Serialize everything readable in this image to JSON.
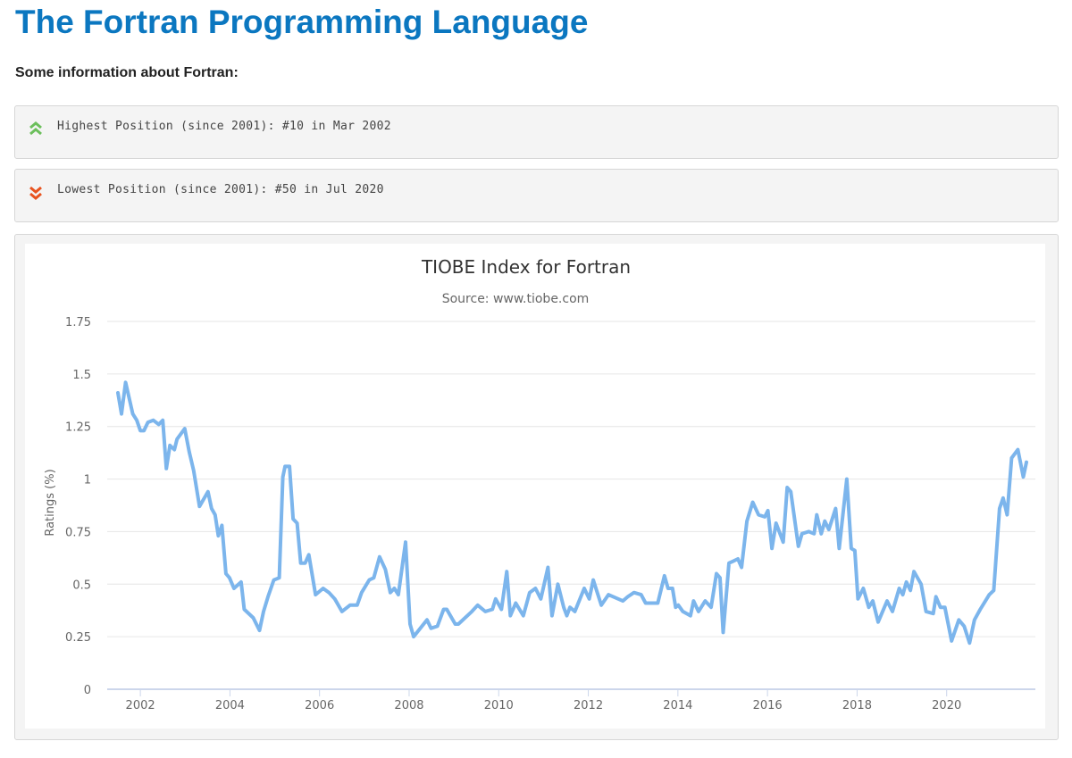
{
  "page": {
    "title": "The Fortran Programming Language",
    "intro": "Some information about Fortran:",
    "highest": {
      "icon": "double-chevron-up-icon",
      "color": "#6cbf5c",
      "text": "Highest Position (since 2001): #10 in Mar 2002"
    },
    "lowest": {
      "icon": "double-chevron-down-icon",
      "color": "#e8531f",
      "text": "Lowest Position (since 2001): #50 in Jul 2020"
    }
  },
  "chart_data": {
    "type": "line",
    "title": "TIOBE Index for Fortran",
    "subtitle": "Source: www.tiobe.com",
    "xlabel": "",
    "ylabel": "Ratings (%)",
    "ylim": [
      0,
      1.75
    ],
    "xlim": [
      2001.26,
      2021.98
    ],
    "yticks": [
      "0",
      "0.25",
      "0.5",
      "0.75",
      "1",
      "1.25",
      "1.5",
      "1.75"
    ],
    "xticks": [
      "2002",
      "2004",
      "2006",
      "2008",
      "2010",
      "2012",
      "2014",
      "2016",
      "2018",
      "2020"
    ],
    "grid": true,
    "legend": "none",
    "line_color": "#7cb5ec",
    "series": [
      {
        "points": [
          [
            2001.5,
            1.41
          ],
          [
            2001.58,
            1.31
          ],
          [
            2001.67,
            1.46
          ],
          [
            2001.83,
            1.31
          ],
          [
            2001.92,
            1.28
          ],
          [
            2002.0,
            1.23
          ],
          [
            2002.08,
            1.23
          ],
          [
            2002.17,
            1.27
          ],
          [
            2002.29,
            1.28
          ],
          [
            2002.41,
            1.26
          ],
          [
            2002.5,
            1.28
          ],
          [
            2002.58,
            1.05
          ],
          [
            2002.66,
            1.16
          ],
          [
            2002.76,
            1.14
          ],
          [
            2002.82,
            1.19
          ],
          [
            2002.99,
            1.24
          ],
          [
            2003.09,
            1.13
          ],
          [
            2003.19,
            1.04
          ],
          [
            2003.32,
            0.87
          ],
          [
            2003.51,
            0.94
          ],
          [
            2003.59,
            0.86
          ],
          [
            2003.67,
            0.83
          ],
          [
            2003.74,
            0.73
          ],
          [
            2003.82,
            0.78
          ],
          [
            2003.91,
            0.55
          ],
          [
            2003.99,
            0.53
          ],
          [
            2004.09,
            0.48
          ],
          [
            2004.25,
            0.51
          ],
          [
            2004.32,
            0.38
          ],
          [
            2004.52,
            0.34
          ],
          [
            2004.66,
            0.28
          ],
          [
            2004.75,
            0.37
          ],
          [
            2004.85,
            0.44
          ],
          [
            2004.98,
            0.52
          ],
          [
            2005.1,
            0.53
          ],
          [
            2005.18,
            1.01
          ],
          [
            2005.23,
            1.06
          ],
          [
            2005.33,
            1.06
          ],
          [
            2005.41,
            0.81
          ],
          [
            2005.5,
            0.79
          ],
          [
            2005.58,
            0.6
          ],
          [
            2005.68,
            0.6
          ],
          [
            2005.76,
            0.64
          ],
          [
            2005.91,
            0.45
          ],
          [
            2006.08,
            0.48
          ],
          [
            2006.21,
            0.46
          ],
          [
            2006.34,
            0.43
          ],
          [
            2006.5,
            0.37
          ],
          [
            2006.68,
            0.4
          ],
          [
            2006.84,
            0.4
          ],
          [
            2006.94,
            0.46
          ],
          [
            2007.11,
            0.52
          ],
          [
            2007.21,
            0.53
          ],
          [
            2007.34,
            0.63
          ],
          [
            2007.47,
            0.57
          ],
          [
            2007.58,
            0.46
          ],
          [
            2007.67,
            0.48
          ],
          [
            2007.76,
            0.45
          ],
          [
            2007.92,
            0.7
          ],
          [
            2008.02,
            0.31
          ],
          [
            2008.1,
            0.25
          ],
          [
            2008.4,
            0.33
          ],
          [
            2008.49,
            0.29
          ],
          [
            2008.63,
            0.3
          ],
          [
            2008.77,
            0.38
          ],
          [
            2008.84,
            0.38
          ],
          [
            2009.03,
            0.31
          ],
          [
            2009.1,
            0.31
          ],
          [
            2009.4,
            0.37
          ],
          [
            2009.53,
            0.4
          ],
          [
            2009.7,
            0.37
          ],
          [
            2009.86,
            0.38
          ],
          [
            2009.93,
            0.43
          ],
          [
            2010.06,
            0.38
          ],
          [
            2010.18,
            0.56
          ],
          [
            2010.26,
            0.35
          ],
          [
            2010.38,
            0.41
          ],
          [
            2010.55,
            0.35
          ],
          [
            2010.69,
            0.46
          ],
          [
            2010.82,
            0.48
          ],
          [
            2010.94,
            0.43
          ],
          [
            2011.1,
            0.58
          ],
          [
            2011.19,
            0.35
          ],
          [
            2011.32,
            0.5
          ],
          [
            2011.45,
            0.39
          ],
          [
            2011.52,
            0.35
          ],
          [
            2011.59,
            0.39
          ],
          [
            2011.7,
            0.37
          ],
          [
            2011.91,
            0.48
          ],
          [
            2012.02,
            0.43
          ],
          [
            2012.11,
            0.52
          ],
          [
            2012.29,
            0.4
          ],
          [
            2012.45,
            0.45
          ],
          [
            2012.77,
            0.42
          ],
          [
            2012.88,
            0.44
          ],
          [
            2013.02,
            0.46
          ],
          [
            2013.18,
            0.45
          ],
          [
            2013.28,
            0.41
          ],
          [
            2013.55,
            0.41
          ],
          [
            2013.7,
            0.54
          ],
          [
            2013.78,
            0.48
          ],
          [
            2013.88,
            0.48
          ],
          [
            2013.95,
            0.39
          ],
          [
            2014.01,
            0.4
          ],
          [
            2014.11,
            0.37
          ],
          [
            2014.28,
            0.35
          ],
          [
            2014.35,
            0.42
          ],
          [
            2014.46,
            0.37
          ],
          [
            2014.61,
            0.42
          ],
          [
            2014.74,
            0.39
          ],
          [
            2014.86,
            0.55
          ],
          [
            2014.94,
            0.53
          ],
          [
            2015.01,
            0.27
          ],
          [
            2015.14,
            0.6
          ],
          [
            2015.24,
            0.61
          ],
          [
            2015.34,
            0.62
          ],
          [
            2015.42,
            0.58
          ],
          [
            2015.54,
            0.8
          ],
          [
            2015.67,
            0.89
          ],
          [
            2015.8,
            0.83
          ],
          [
            2015.94,
            0.82
          ],
          [
            2016.01,
            0.85
          ],
          [
            2016.1,
            0.67
          ],
          [
            2016.19,
            0.79
          ],
          [
            2016.35,
            0.7
          ],
          [
            2016.44,
            0.96
          ],
          [
            2016.52,
            0.94
          ],
          [
            2016.69,
            0.68
          ],
          [
            2016.77,
            0.74
          ],
          [
            2016.92,
            0.75
          ],
          [
            2017.04,
            0.74
          ],
          [
            2017.1,
            0.83
          ],
          [
            2017.2,
            0.74
          ],
          [
            2017.28,
            0.8
          ],
          [
            2017.37,
            0.76
          ],
          [
            2017.52,
            0.86
          ],
          [
            2017.6,
            0.67
          ],
          [
            2017.77,
            1.0
          ],
          [
            2017.87,
            0.67
          ],
          [
            2017.95,
            0.66
          ],
          [
            2018.02,
            0.43
          ],
          [
            2018.14,
            0.48
          ],
          [
            2018.26,
            0.39
          ],
          [
            2018.35,
            0.42
          ],
          [
            2018.47,
            0.32
          ],
          [
            2018.67,
            0.42
          ],
          [
            2018.79,
            0.37
          ],
          [
            2018.94,
            0.48
          ],
          [
            2019.02,
            0.45
          ],
          [
            2019.1,
            0.51
          ],
          [
            2019.19,
            0.47
          ],
          [
            2019.27,
            0.56
          ],
          [
            2019.43,
            0.5
          ],
          [
            2019.54,
            0.37
          ],
          [
            2019.7,
            0.36
          ],
          [
            2019.76,
            0.44
          ],
          [
            2019.86,
            0.39
          ],
          [
            2019.96,
            0.39
          ],
          [
            2020.11,
            0.23
          ],
          [
            2020.27,
            0.33
          ],
          [
            2020.39,
            0.3
          ],
          [
            2020.51,
            0.22
          ],
          [
            2020.62,
            0.33
          ],
          [
            2020.75,
            0.38
          ],
          [
            2020.95,
            0.45
          ],
          [
            2021.05,
            0.47
          ],
          [
            2021.18,
            0.86
          ],
          [
            2021.26,
            0.91
          ],
          [
            2021.35,
            0.83
          ],
          [
            2021.45,
            1.1
          ],
          [
            2021.59,
            1.14
          ],
          [
            2021.71,
            1.01
          ],
          [
            2021.78,
            1.08
          ]
        ]
      }
    ]
  }
}
